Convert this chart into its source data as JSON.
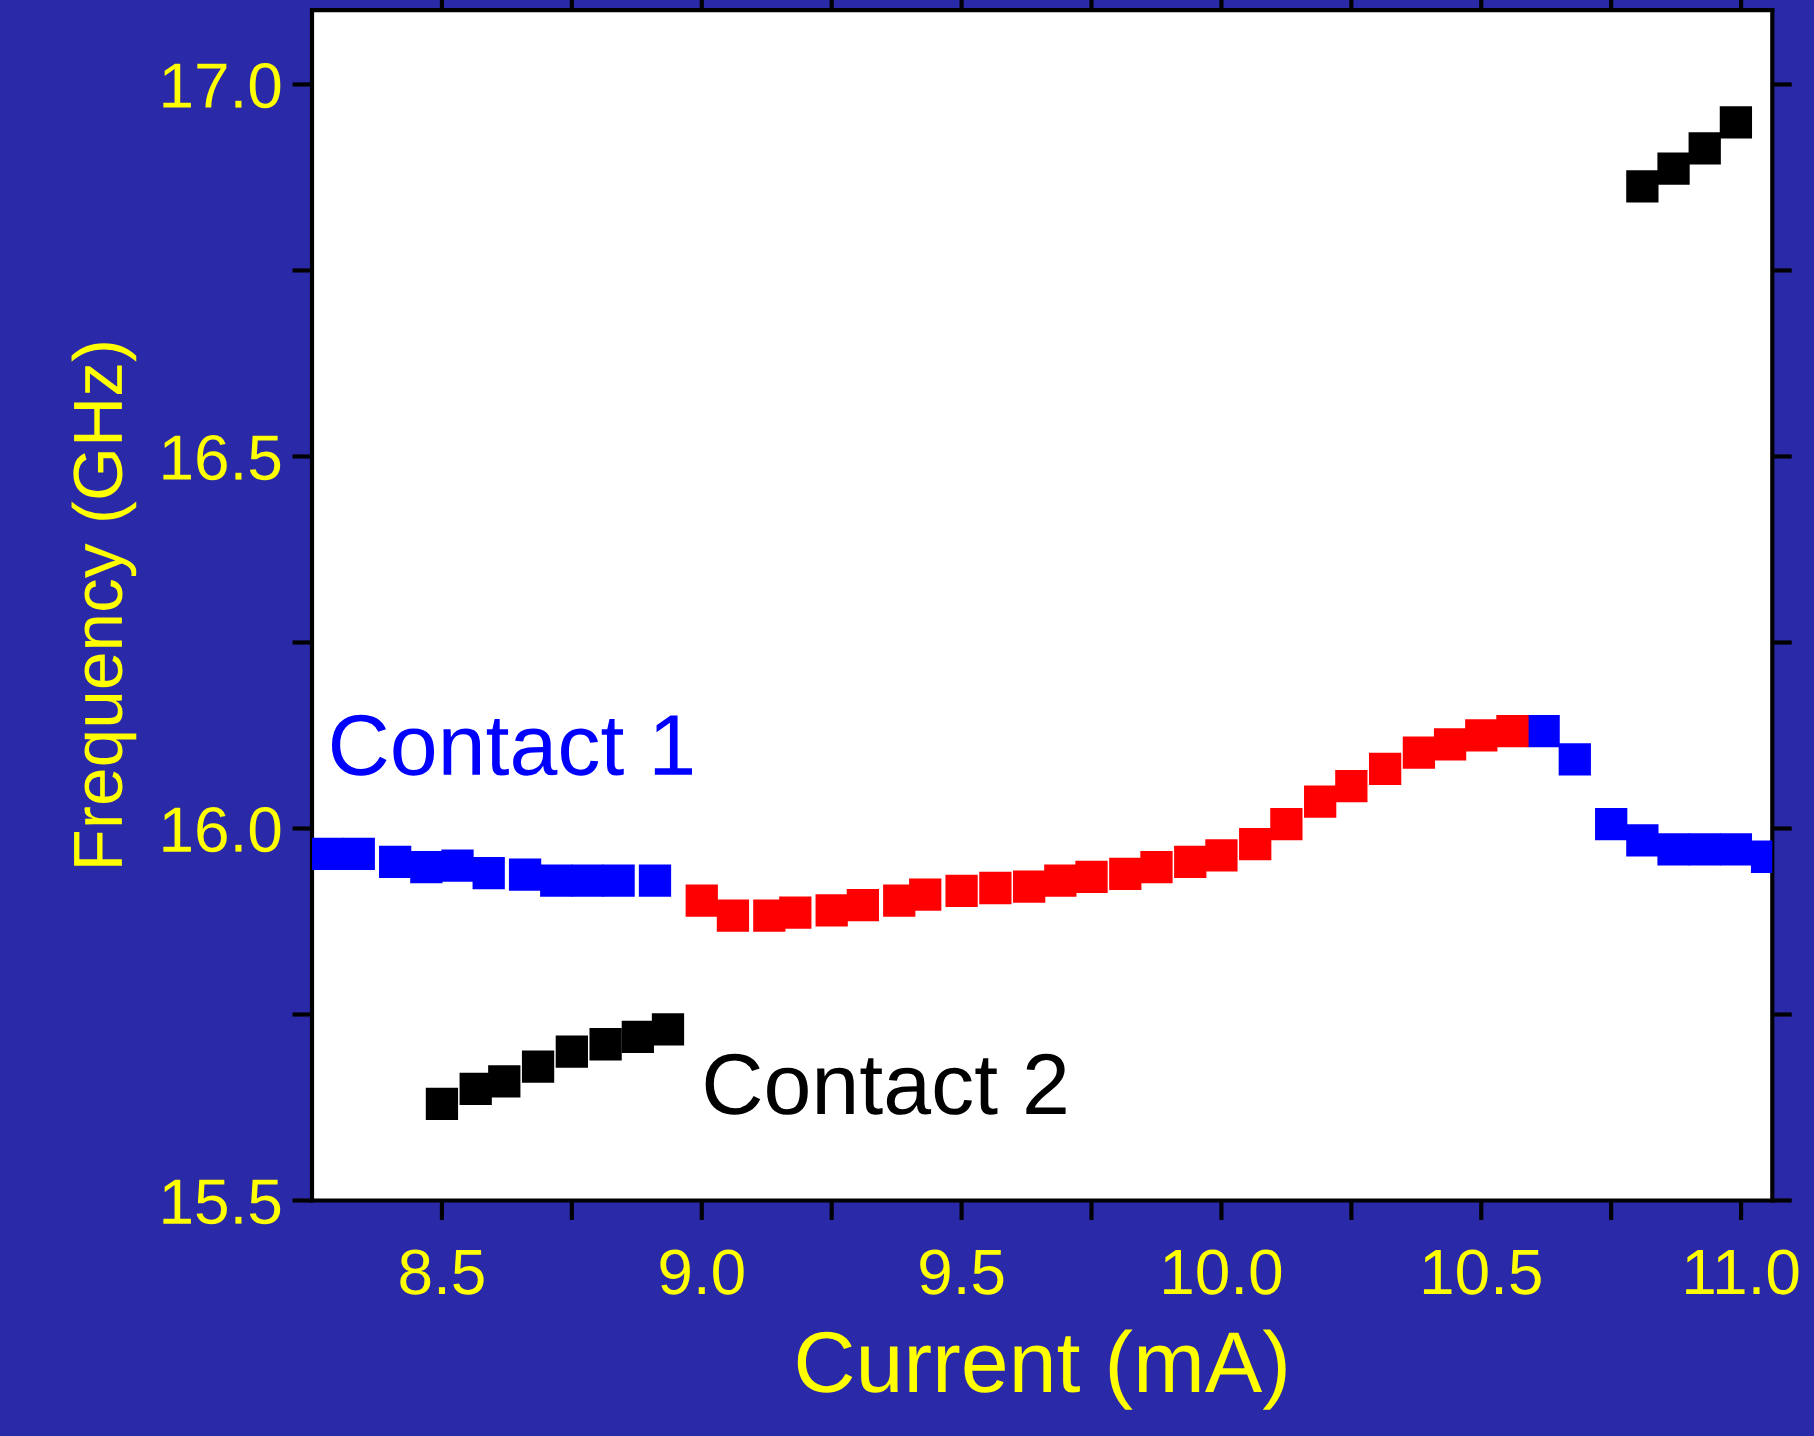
{
  "chart_data": {
    "type": "scatter",
    "xlabel": "Current (mA)",
    "ylabel": "Frequency (GHz)",
    "xlim": [
      8.25,
      11.06
    ],
    "ylim": [
      15.5,
      17.1
    ],
    "xticks": [
      8.5,
      {
        "value": 8.75,
        "label": null
      },
      {
        "value": 9,
        "label": "9.0"
      },
      {
        "value": 9.25,
        "label": null
      },
      9.5,
      {
        "value": 9.75,
        "label": null
      },
      {
        "value": 10,
        "label": "10.0"
      },
      {
        "value": 10.25,
        "label": null
      },
      10.5,
      {
        "value": 10.75,
        "label": null
      },
      {
        "value": 11,
        "label": "11.0"
      }
    ],
    "yticks": [
      15.5,
      {
        "value": 15.75,
        "label": null
      },
      {
        "value": 16,
        "label": "16.0"
      },
      {
        "value": 16.25,
        "label": null
      },
      16.5,
      {
        "value": 16.75,
        "label": null
      },
      {
        "value": 17,
        "label": "17.0"
      }
    ],
    "marker": "square",
    "grid": false,
    "legend": false,
    "series": [
      {
        "name": "Contact 1",
        "color": "#0000ff",
        "x": [
          8.28,
          8.34,
          8.41,
          8.47,
          8.53,
          8.59,
          8.66,
          8.72,
          8.78,
          8.84,
          8.91,
          10.62,
          10.68,
          10.75,
          10.81,
          10.87,
          10.93,
          10.99,
          11.05
        ],
        "values": [
          15.966,
          15.966,
          15.955,
          15.948,
          15.95,
          15.94,
          15.938,
          15.93,
          15.93,
          15.93,
          15.93,
          16.131,
          16.093,
          16.006,
          15.984,
          15.972,
          15.972,
          15.972,
          15.962
        ]
      },
      {
        "color": "#ff0000",
        "x": [
          9.0,
          9.06,
          9.13,
          9.18,
          9.25,
          9.31,
          9.38,
          9.43,
          9.5,
          9.565,
          9.63,
          9.69,
          9.75,
          9.815,
          9.875,
          9.94,
          10.0,
          10.065,
          10.125,
          10.19,
          10.25,
          10.315,
          10.38,
          10.44,
          10.5,
          10.56
        ],
        "values": [
          15.903,
          15.883,
          15.883,
          15.887,
          15.89,
          15.897,
          15.903,
          15.911,
          15.916,
          15.92,
          15.922,
          15.93,
          15.935,
          15.939,
          15.948,
          15.955,
          15.964,
          15.979,
          16.006,
          16.036,
          16.057,
          16.08,
          16.102,
          16.113,
          16.125,
          16.131
        ]
      },
      {
        "name": "Contact 2",
        "color": "#000000",
        "x": [
          8.5,
          8.565,
          8.62,
          8.685,
          8.75,
          8.815,
          8.877,
          8.935,
          10.81,
          10.87,
          10.93,
          10.99
        ],
        "values": [
          15.63,
          15.65,
          15.66,
          15.68,
          15.7,
          15.71,
          15.72,
          15.73,
          16.863,
          16.887,
          16.914,
          16.949
        ]
      }
    ]
  }
}
